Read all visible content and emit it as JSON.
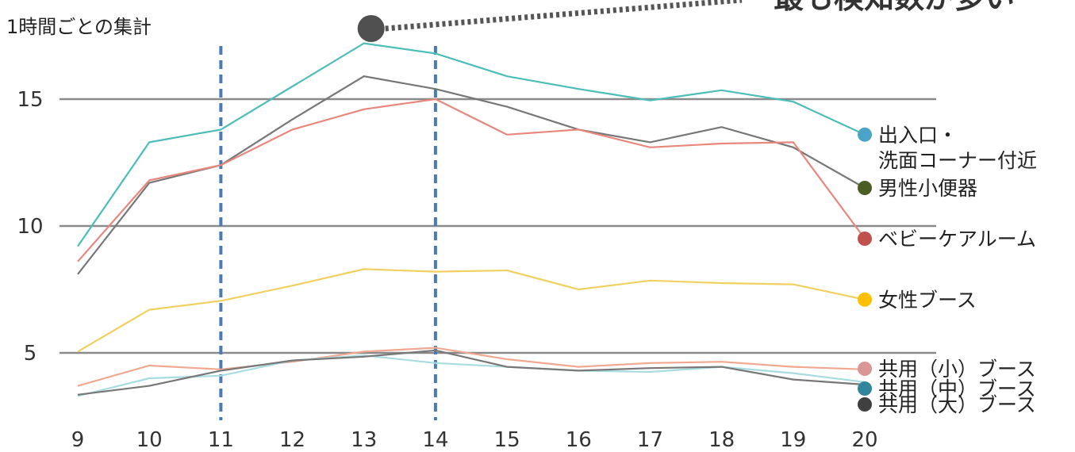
{
  "chart_data": {
    "type": "line",
    "subtitle": "1時間ごとの集計",
    "callout": "最も検知数が多い",
    "x": [
      9,
      10,
      11,
      12,
      13,
      14,
      15,
      16,
      17,
      18,
      19,
      20
    ],
    "x_tick_labels": [
      "9",
      "10",
      "11",
      "12",
      "13",
      "14",
      "15",
      "16",
      "17",
      "18",
      "19",
      "20"
    ],
    "y_tick_labels": [
      "5",
      "10",
      "15"
    ],
    "y_ticks": [
      5,
      10,
      15
    ],
    "ylim": [
      2.5,
      17.5
    ],
    "grid": true,
    "highlight_x": [
      11,
      14
    ],
    "callout_point": {
      "x": 13,
      "y": 17.1
    },
    "series": [
      {
        "name": "出入口・\n洗面コーナー付近",
        "line_color": "#4dbdb8",
        "marker_color": "#4ba3c7",
        "values": [
          9.2,
          13.3,
          13.8,
          15.5,
          17.2,
          16.8,
          15.9,
          15.4,
          14.95,
          15.35,
          14.9,
          13.6
        ]
      },
      {
        "name": "男性小便器",
        "line_color": "#777777",
        "marker_color": "#4a5e23",
        "values": [
          8.1,
          11.7,
          12.4,
          14.2,
          15.9,
          15.4,
          14.7,
          13.8,
          13.3,
          13.9,
          13.1,
          11.5
        ]
      },
      {
        "name": "ベビーケアルーム",
        "line_color": "#e8877d",
        "marker_color": "#c0504d",
        "values": [
          8.6,
          11.8,
          12.4,
          13.8,
          14.6,
          15.0,
          13.6,
          13.8,
          13.1,
          13.25,
          13.3,
          9.5
        ]
      },
      {
        "name": "女性ブース",
        "line_color": "#f0d060",
        "marker_color": "#ffc000",
        "values": [
          5.05,
          6.7,
          7.05,
          7.65,
          8.3,
          8.2,
          8.25,
          7.5,
          7.85,
          7.75,
          7.7,
          7.1
        ]
      },
      {
        "name": "共用（小）ブース",
        "line_color": "#f0a890",
        "marker_color": "#d99694",
        "values": [
          3.7,
          4.5,
          4.35,
          4.65,
          5.05,
          5.2,
          4.75,
          4.45,
          4.6,
          4.65,
          4.45,
          4.35
        ]
      },
      {
        "name": "共用（中）ブース",
        "line_color": "#a8dce0",
        "marker_color": "#31859c",
        "values": [
          3.3,
          4.0,
          4.1,
          4.7,
          4.9,
          4.6,
          4.45,
          4.3,
          4.25,
          4.45,
          4.2,
          3.85
        ]
      },
      {
        "name": "共用（大）ブース",
        "line_color": "#777777",
        "marker_color": "#404040",
        "values": [
          3.35,
          3.7,
          4.3,
          4.7,
          4.85,
          5.1,
          4.45,
          4.3,
          4.4,
          4.45,
          3.95,
          3.75
        ]
      }
    ]
  }
}
